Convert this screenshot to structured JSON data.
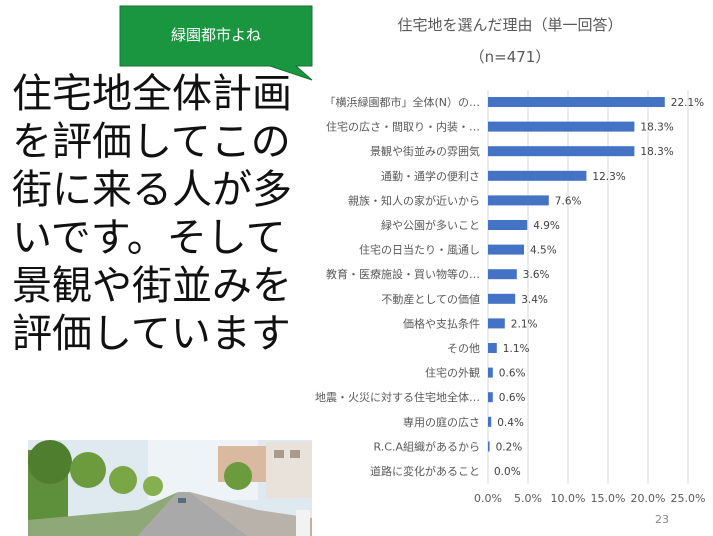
{
  "callout": {
    "label": "緑園都市よね",
    "color": "#1a9641"
  },
  "main_text": "住宅地全体計画を評価してこの街に来る人が多いです。そして景観や街並みを評価しています",
  "page_number": "23",
  "colors": {
    "bar": "#4472c4",
    "grid": "#d9d9d9",
    "text": "#595959"
  },
  "chart_data": {
    "type": "bar",
    "orientation": "horizontal",
    "title": "住宅地を選んだ理由（単一回答）",
    "subtitle": "（n=471）",
    "categories": [
      "「横浜緑園都市」全体(N）の…",
      "住宅の広さ・間取り・内装・…",
      "景観や街並みの雰囲気",
      "通勤・通学の便利さ",
      "親族・知人の家が近いから",
      "緑や公園が多いこと",
      "住宅の日当たり・風通し",
      "教育・医療施設・買い物等の…",
      "不動産としての価値",
      "価格や支払条件",
      "その他",
      "住宅の外観",
      "地震・火災に対する住宅地全体…",
      "専用の庭の広さ",
      "R.C.A組織があるから",
      "道路に変化があること"
    ],
    "values": [
      22.1,
      18.3,
      18.3,
      12.3,
      7.6,
      4.9,
      4.5,
      3.6,
      3.4,
      2.1,
      1.1,
      0.6,
      0.6,
      0.4,
      0.2,
      0.0
    ],
    "value_labels": [
      "22.1%",
      "18.3%",
      "18.3%",
      "12.3%",
      "7.6%",
      "4.9%",
      "4.5%",
      "3.6%",
      "3.4%",
      "2.1%",
      "1.1%",
      "0.6%",
      "0.6%",
      "0.4%",
      "0.2%",
      "0.0%"
    ],
    "xlim": [
      0,
      25
    ],
    "x_ticks": [
      0,
      5,
      10,
      15,
      20,
      25
    ],
    "x_tick_labels": [
      "0.0%",
      "5.0%",
      "10.0%",
      "15.0%",
      "20.0%",
      "25.0%"
    ],
    "grid": true,
    "legend": "none"
  }
}
